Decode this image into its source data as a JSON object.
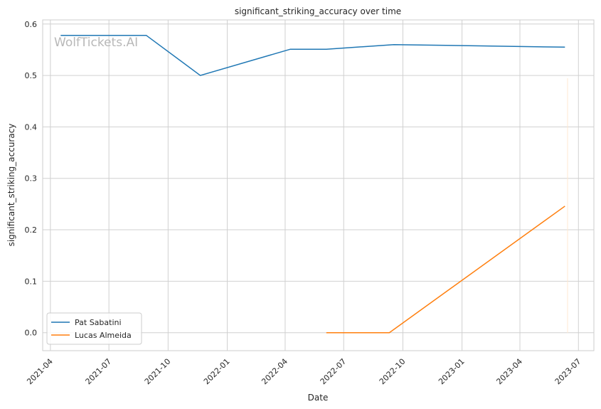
{
  "chart_data": {
    "type": "line",
    "title": "significant_striking_accuracy over time",
    "xlabel": "Date",
    "ylabel": "significant_striking_accuracy",
    "watermark": "WolfTickets.AI",
    "xlim": [
      "2021-03-20",
      "2023-07-25"
    ],
    "ylim": [
      -0.035,
      0.608
    ],
    "x_ticks": [
      "2021-04",
      "2021-07",
      "2021-10",
      "2022-01",
      "2022-04",
      "2022-07",
      "2022-10",
      "2023-01",
      "2023-04",
      "2023-07"
    ],
    "y_ticks": [
      0.0,
      0.1,
      0.2,
      0.3,
      0.4,
      0.5,
      0.6
    ],
    "y_tick_labels": [
      "0.0",
      "0.1",
      "0.2",
      "0.3",
      "0.4",
      "0.5",
      "0.6"
    ],
    "grid": true,
    "legend_position": "lower-left",
    "series": [
      {
        "name": "Pat Sabatini",
        "color": "#1f77b4",
        "points": [
          {
            "x": "2021-04-17",
            "y": 0.578
          },
          {
            "x": "2021-08-28",
            "y": 0.578
          },
          {
            "x": "2021-11-20",
            "y": 0.5
          },
          {
            "x": "2022-04-09",
            "y": 0.551
          },
          {
            "x": "2022-06-04",
            "y": 0.551
          },
          {
            "x": "2022-09-17",
            "y": 0.56
          },
          {
            "x": "2023-06-10",
            "y": 0.555
          }
        ]
      },
      {
        "name": "Lucas Almeida",
        "color": "#ff7f0e",
        "points": [
          {
            "x": "2022-06-04",
            "y": 0.0
          },
          {
            "x": "2022-09-10",
            "y": 0.0
          },
          {
            "x": "2023-06-10",
            "y": 0.246
          }
        ]
      }
    ]
  }
}
